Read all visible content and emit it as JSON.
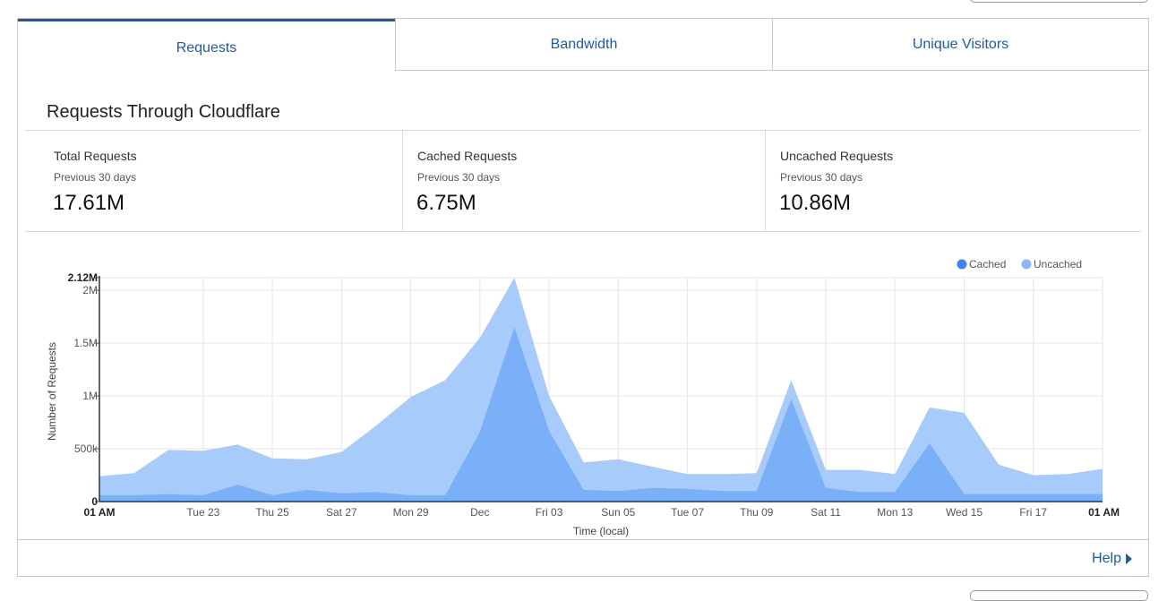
{
  "tabs": [
    {
      "label": "Requests",
      "active": true
    },
    {
      "label": "Bandwidth",
      "active": false
    },
    {
      "label": "Unique Visitors",
      "active": false
    }
  ],
  "section_title": "Requests Through Cloudflare",
  "stats": [
    {
      "label": "Total Requests",
      "period": "Previous 30 days",
      "value": "17.61M"
    },
    {
      "label": "Cached Requests",
      "period": "Previous 30 days",
      "value": "6.75M"
    },
    {
      "label": "Uncached Requests",
      "period": "Previous 30 days",
      "value": "10.86M"
    }
  ],
  "help_label": "Help",
  "colors": {
    "accent": "#1f5a9e",
    "cached": "#7ab0f7",
    "uncached": "#a7cbfa",
    "legend_cached": "#3b86f0",
    "legend_uncached": "#8ab8f8"
  },
  "chart_data": {
    "type": "area",
    "stacked": false,
    "xlabel": "Time (local)",
    "ylabel": "Number of Requests",
    "ylim": [
      0,
      2120000
    ],
    "y_ticks": [
      {
        "value": 0,
        "label": "0"
      },
      {
        "value": 500000,
        "label": "500k"
      },
      {
        "value": 1000000,
        "label": "1M"
      },
      {
        "value": 1500000,
        "label": "1.5M"
      },
      {
        "value": 2000000,
        "label": "2M"
      },
      {
        "value": 2120000,
        "label": "2.12M"
      }
    ],
    "x_ticks": [
      {
        "label": "01 AM",
        "index": 0,
        "bold": true
      },
      {
        "label": "Tue 23",
        "index": 3,
        "bold": false
      },
      {
        "label": "Thu 25",
        "index": 5,
        "bold": false
      },
      {
        "label": "Sat 27",
        "index": 7,
        "bold": false
      },
      {
        "label": "Mon 29",
        "index": 9,
        "bold": false
      },
      {
        "label": "Dec",
        "index": 11,
        "bold": false
      },
      {
        "label": "Fri 03",
        "index": 13,
        "bold": false
      },
      {
        "label": "Sun 05",
        "index": 15,
        "bold": false
      },
      {
        "label": "Tue 07",
        "index": 17,
        "bold": false
      },
      {
        "label": "Thu 09",
        "index": 19,
        "bold": false
      },
      {
        "label": "Sat 11",
        "index": 21,
        "bold": false
      },
      {
        "label": "Mon 13",
        "index": 23,
        "bold": false
      },
      {
        "label": "Wed 15",
        "index": 25,
        "bold": false
      },
      {
        "label": "Fri 17",
        "index": 27,
        "bold": false
      },
      {
        "label": "01 AM",
        "index": 29,
        "bold": true
      }
    ],
    "legend": "top-right",
    "grid": true,
    "series": [
      {
        "name": "Uncached",
        "values": [
          240000,
          270000,
          490000,
          480000,
          540000,
          410000,
          400000,
          470000,
          720000,
          990000,
          1150000,
          1550000,
          2120000,
          1000000,
          370000,
          400000,
          330000,
          260000,
          260000,
          270000,
          1150000,
          300000,
          300000,
          260000,
          890000,
          840000,
          350000,
          250000,
          260000,
          310000
        ]
      },
      {
        "name": "Cached",
        "values": [
          60000,
          60000,
          70000,
          60000,
          160000,
          60000,
          110000,
          80000,
          90000,
          60000,
          60000,
          660000,
          1650000,
          670000,
          110000,
          100000,
          130000,
          120000,
          100000,
          100000,
          970000,
          130000,
          90000,
          90000,
          550000,
          70000,
          70000,
          70000,
          70000,
          70000
        ]
      }
    ]
  }
}
